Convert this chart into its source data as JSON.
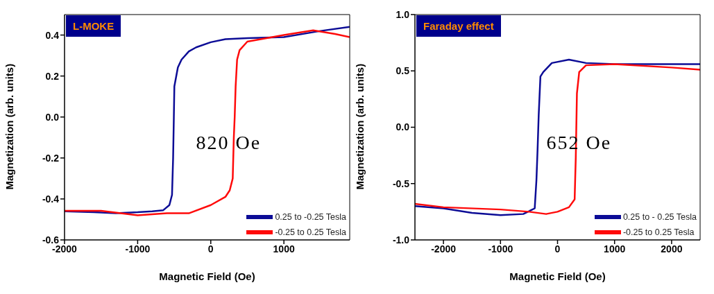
{
  "chart_data": [
    {
      "type": "line",
      "title": "L-MOKE",
      "xlabel": "Magnetic Field (Oe)",
      "ylabel": "Magnetization (arb. units)",
      "annotations": [
        "820 Oe"
      ],
      "xlim": [
        -2000,
        1900
      ],
      "xticks": [
        -2000,
        -1000,
        0,
        1000
      ],
      "ylim": [
        -0.6,
        0.5
      ],
      "yticks": [
        -0.6,
        -0.4,
        -0.2,
        {
          "value": 0.0,
          "label": "0.0"
        },
        0.2,
        0.4
      ],
      "legend": "bottom right",
      "marker": "none",
      "line_style": "solid",
      "series": [
        {
          "name": "0.25 to -0.25 Tesla",
          "color": "#0c0c96",
          "x": [
            1900,
            1500,
            1000,
            500,
            200,
            0,
            -200,
            -300,
            -400,
            -450,
            -498,
            -505,
            -515,
            -530,
            -566,
            -650,
            -800,
            -1000,
            -1300,
            -1600,
            -2000
          ],
          "values": [
            0.44,
            0.42,
            0.39,
            0.385,
            0.38,
            0.365,
            0.34,
            0.32,
            0.28,
            0.242,
            0.15,
            0.0,
            -0.2,
            -0.38,
            -0.43,
            -0.455,
            -0.46,
            -0.465,
            -0.47,
            -0.465,
            -0.46
          ]
        },
        {
          "name": "-0.25 to 0.25 Tesla",
          "color": "#ff0a0a",
          "x": [
            -2000,
            -1500,
            -1000,
            -600,
            -300,
            0,
            200,
            259,
            300,
            315,
            327,
            340,
            360,
            394,
            500,
            1000,
            1400,
            1700,
            1900
          ],
          "values": [
            -0.458,
            -0.458,
            -0.48,
            -0.47,
            -0.47,
            -0.43,
            -0.39,
            -0.358,
            -0.3,
            -0.1,
            0.0,
            0.15,
            0.28,
            0.326,
            0.368,
            0.4,
            0.423,
            0.405,
            0.39
          ]
        }
      ]
    },
    {
      "type": "line",
      "title": "Faraday effect",
      "xlabel": "Magnetic Field (Oe)",
      "ylabel": "Magnetization (arb. units)",
      "annotations": [
        "652 Oe"
      ],
      "xlim": [
        -2500,
        2500
      ],
      "xticks": [
        -2000,
        -1000,
        0,
        1000,
        2000
      ],
      "ylim": [
        -1.0,
        1.0
      ],
      "yticks": [
        {
          "value": -1.0,
          "label": "-1.0"
        },
        -0.5,
        {
          "value": 0.0,
          "label": "0.0"
        },
        0.5,
        {
          "value": 1.0,
          "label": "1.0"
        }
      ],
      "legend": "bottom right",
      "marker": "none",
      "line_style": "solid",
      "series": [
        {
          "name": "0.25 to - 0.25 Tesla",
          "color": "#0c0c96",
          "x": [
            2500,
            2000,
            1000,
            500,
            200,
            -100,
            -250,
            -300,
            -330,
            -350,
            -370,
            -400,
            -600,
            -1000,
            -1500,
            -2000,
            -2500
          ],
          "values": [
            0.56,
            0.56,
            0.56,
            0.57,
            0.6,
            0.57,
            0.49,
            0.45,
            0.11,
            -0.2,
            -0.47,
            -0.72,
            -0.77,
            -0.78,
            -0.76,
            -0.72,
            -0.7
          ]
        },
        {
          "name": "-0.25 to 0.25 Tesla",
          "color": "#ff0a0a",
          "x": [
            -2500,
            -2000,
            -1000,
            -500,
            -200,
            0,
            200,
            300,
            310,
            320,
            340,
            380,
            500,
            1000,
            2000,
            2500
          ],
          "values": [
            -0.68,
            -0.71,
            -0.73,
            -0.75,
            -0.77,
            -0.75,
            -0.71,
            -0.64,
            -0.45,
            -0.27,
            0.3,
            0.49,
            0.55,
            0.56,
            0.53,
            0.51
          ]
        }
      ]
    }
  ]
}
